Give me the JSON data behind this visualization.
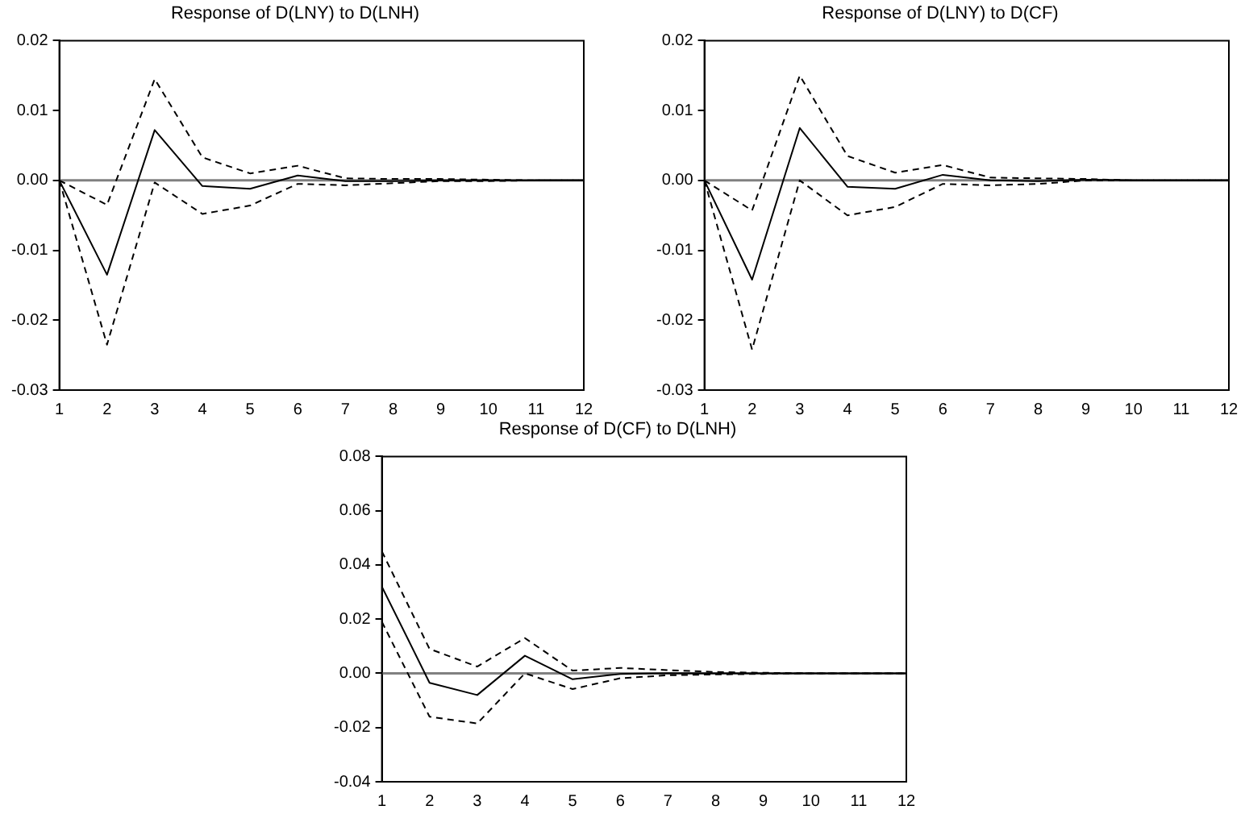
{
  "chart_data": [
    {
      "type": "line",
      "title": "Response of D(LNY) to D(LNH)",
      "x": [
        1,
        2,
        3,
        4,
        5,
        6,
        7,
        8,
        9,
        10,
        11,
        12
      ],
      "xlim": [
        1,
        12
      ],
      "xticks": [
        1,
        2,
        3,
        4,
        5,
        6,
        7,
        8,
        9,
        10,
        11,
        12
      ],
      "ylim": [
        -0.03,
        0.02
      ],
      "yticks": [
        {
          "value": -0.03,
          "label": "-0.03"
        },
        {
          "value": -0.02,
          "label": "-0.02"
        },
        {
          "value": -0.01,
          "label": "-0.01"
        },
        {
          "value": 0,
          "label": "0.00"
        },
        {
          "value": 0.01,
          "label": "0.01"
        },
        {
          "value": 0.02,
          "label": "0.02"
        }
      ],
      "grid": false,
      "legend": false,
      "marker": "none",
      "ref_lines": [
        {
          "axis": "y",
          "value": 0,
          "color": "#808080"
        }
      ],
      "series": [
        {
          "color": "#000000",
          "line_style": "solid",
          "values": [
            0,
            -0.0135,
            0.0072,
            -0.0008,
            -0.0012,
            0.0007,
            -0.0001,
            -0.0001,
            0,
            0,
            0,
            0
          ]
        },
        {
          "color": "#000000",
          "line_style": "dashed",
          "values": [
            0,
            -0.0035,
            0.0145,
            0.0033,
            0.001,
            0.0021,
            0.0003,
            0.0002,
            0.0002,
            0.0001,
            0,
            0
          ]
        },
        {
          "color": "#000000",
          "line_style": "dashed",
          "values": [
            0,
            -0.0235,
            -0.0003,
            -0.0048,
            -0.0036,
            -0.0005,
            -0.0007,
            -0.0004,
            -0.0001,
            -0.0001,
            0,
            0
          ]
        }
      ]
    },
    {
      "type": "line",
      "title": "Response of D(LNY) to D(CF)",
      "x": [
        1,
        2,
        3,
        4,
        5,
        6,
        7,
        8,
        9,
        10,
        11,
        12
      ],
      "xlim": [
        1,
        12
      ],
      "xticks": [
        1,
        2,
        3,
        4,
        5,
        6,
        7,
        8,
        9,
        10,
        11,
        12
      ],
      "ylim": [
        -0.03,
        0.02
      ],
      "yticks": [
        {
          "value": -0.03,
          "label": "-0.03"
        },
        {
          "value": -0.02,
          "label": "-0.02"
        },
        {
          "value": -0.01,
          "label": "-0.01"
        },
        {
          "value": 0,
          "label": "0.00"
        },
        {
          "value": 0.01,
          "label": "0.01"
        },
        {
          "value": 0.02,
          "label": "0.02"
        }
      ],
      "grid": false,
      "legend": false,
      "marker": "none",
      "ref_lines": [
        {
          "axis": "y",
          "value": 0,
          "color": "#808080"
        }
      ],
      "series": [
        {
          "color": "#000000",
          "line_style": "solid",
          "values": [
            0,
            -0.0142,
            0.0075,
            -0.0009,
            -0.0012,
            0.0008,
            0,
            -0.0001,
            0.0001,
            0,
            0,
            0
          ]
        },
        {
          "color": "#000000",
          "line_style": "dashed",
          "values": [
            0,
            -0.0043,
            0.015,
            0.0035,
            0.0011,
            0.0022,
            0.0004,
            0.0003,
            0.0002,
            0,
            0,
            0
          ]
        },
        {
          "color": "#000000",
          "line_style": "dashed",
          "values": [
            0,
            -0.0242,
            0,
            -0.005,
            -0.0038,
            -0.0005,
            -0.0007,
            -0.0005,
            0,
            0,
            0,
            0
          ]
        }
      ]
    },
    {
      "type": "line",
      "title": "Response of D(CF) to D(LNH)",
      "x": [
        1,
        2,
        3,
        4,
        5,
        6,
        7,
        8,
        9,
        10,
        11,
        12
      ],
      "xlim": [
        1,
        12
      ],
      "xticks": [
        1,
        2,
        3,
        4,
        5,
        6,
        7,
        8,
        9,
        10,
        11,
        12
      ],
      "ylim": [
        -0.04,
        0.08
      ],
      "yticks": [
        {
          "value": -0.04,
          "label": "-0.04"
        },
        {
          "value": -0.02,
          "label": "-0.02"
        },
        {
          "value": 0,
          "label": "0.00"
        },
        {
          "value": 0.02,
          "label": "0.02"
        },
        {
          "value": 0.04,
          "label": "0.04"
        },
        {
          "value": 0.06,
          "label": "0.06"
        },
        {
          "value": 0.08,
          "label": "0.08"
        }
      ],
      "grid": false,
      "legend": false,
      "marker": "none",
      "ref_lines": [
        {
          "axis": "y",
          "value": 0,
          "color": "#808080"
        }
      ],
      "series": [
        {
          "color": "#000000",
          "line_style": "solid",
          "values": [
            0.032,
            -0.0035,
            -0.008,
            0.0065,
            -0.0022,
            -0.0002,
            0.0001,
            0,
            0,
            0,
            0,
            0
          ]
        },
        {
          "color": "#000000",
          "line_style": "dashed",
          "values": [
            0.045,
            0.009,
            0.0025,
            0.013,
            0.001,
            0.002,
            0.0012,
            0.0005,
            0.0002,
            0,
            0,
            0
          ]
        },
        {
          "color": "#000000",
          "line_style": "dashed",
          "values": [
            0.019,
            -0.016,
            -0.0185,
            0,
            -0.0058,
            -0.0018,
            -0.0007,
            -0.0004,
            -0.0002,
            0,
            0,
            0
          ]
        }
      ]
    }
  ]
}
